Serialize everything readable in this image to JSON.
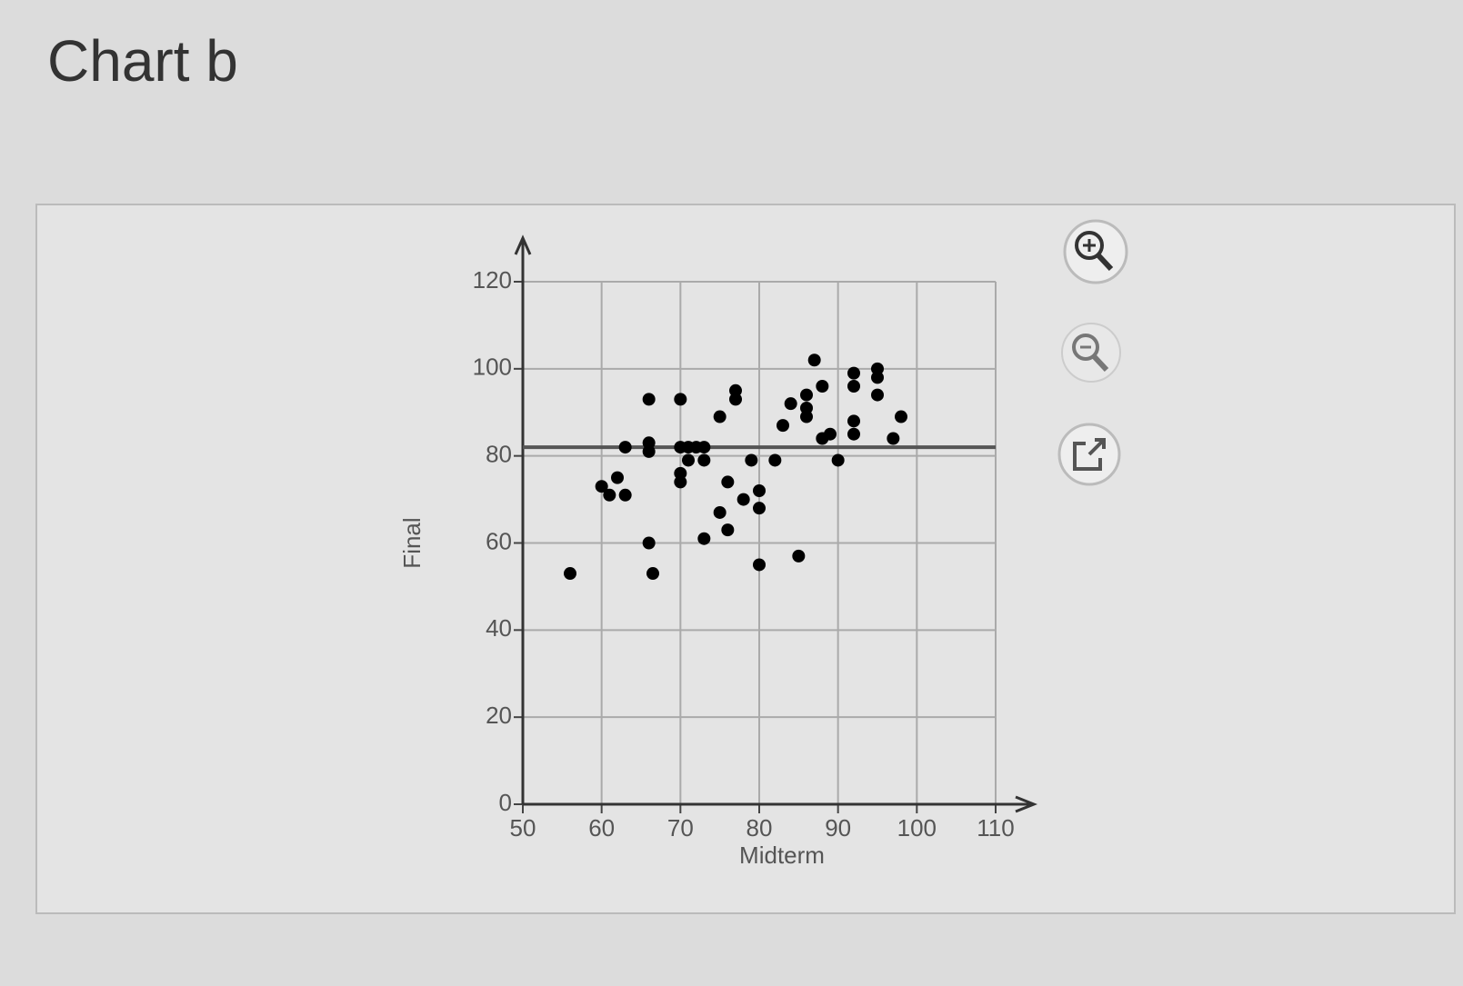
{
  "page_title": "Chart b",
  "chart_data": {
    "type": "scatter",
    "xlabel": "Midterm",
    "ylabel": "Final",
    "color": "#000000",
    "x": [
      56,
      66.5,
      66,
      66,
      70,
      66,
      66,
      60,
      61,
      62,
      63,
      63,
      70,
      70,
      70,
      71,
      72,
      73,
      71,
      73,
      73,
      75,
      77,
      77,
      76,
      75,
      76,
      78,
      80,
      80,
      80,
      79,
      82,
      83,
      84,
      86,
      86,
      86,
      87,
      88,
      85,
      88,
      89,
      90,
      92,
      92,
      92,
      92,
      95,
      95,
      95,
      98,
      97
    ],
    "values": [
      53,
      53,
      60,
      93,
      93,
      83,
      81,
      73,
      71,
      75,
      71,
      82,
      76,
      74,
      82,
      82,
      82,
      82,
      79,
      79,
      61,
      89,
      95,
      93,
      74,
      67,
      63,
      70,
      72,
      68,
      55,
      79,
      79,
      87,
      92,
      94,
      91,
      89,
      102,
      96,
      57,
      84,
      85,
      79,
      99,
      96,
      88,
      85,
      100,
      98,
      94,
      89,
      84
    ],
    "hline": 82,
    "xlim": [
      50,
      110
    ],
    "ylim": [
      0,
      120
    ],
    "xticks": [
      50,
      60,
      70,
      80,
      90,
      100,
      110
    ],
    "yticks": [
      0,
      20,
      40,
      60,
      80,
      100,
      120
    ],
    "grid": true
  }
}
